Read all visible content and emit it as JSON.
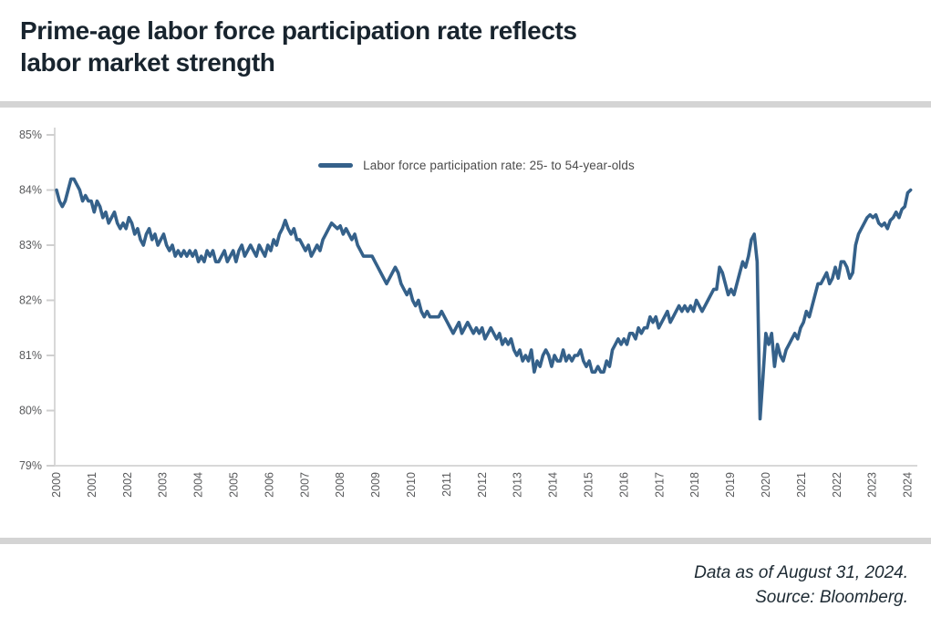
{
  "header": {
    "title_line1": "Prime-age labor force participation rate reflects",
    "title_line2": "labor market strength"
  },
  "legend": {
    "label": "Labor force participation rate: 25- to 54-year-olds"
  },
  "footer": {
    "line1": "Data as of August 31, 2024.",
    "line2": "Source: Bloomberg."
  },
  "colors": {
    "line": "#35618a",
    "axis": "#d8d8d8",
    "tick": "#cfcfcf",
    "tick_label": "#58595b",
    "divider": "#d4d4d4",
    "title_text": "#18242e",
    "footer_text": "#1d2a33",
    "legend_text": "#4b4b4b"
  },
  "chart_data": {
    "type": "line",
    "title": "Prime-age labor force participation rate reflects labor market strength",
    "series_name": "Labor force participation rate: 25- to 54-year-olds",
    "frequency": "monthly",
    "start": "2000-01",
    "end": "2024-08",
    "unit": "percent",
    "ylim": [
      79,
      85
    ],
    "grid": false,
    "legend_position": "top-center",
    "y_ticks": [
      "85%",
      "84%",
      "83%",
      "82%",
      "81%",
      "80%",
      "79%"
    ],
    "x_ticks": [
      "2000",
      "2001",
      "2002",
      "2003",
      "2004",
      "2005",
      "2006",
      "2007",
      "2008",
      "2009",
      "2010",
      "2011",
      "2012",
      "2013",
      "2014",
      "2015",
      "2016",
      "2017",
      "2018",
      "2019",
      "2020",
      "2021",
      "2022",
      "2023",
      "2024"
    ],
    "values": [
      84.0,
      83.8,
      83.7,
      83.8,
      84.0,
      84.2,
      84.2,
      84.1,
      84.0,
      83.8,
      83.9,
      83.8,
      83.8,
      83.6,
      83.8,
      83.7,
      83.5,
      83.6,
      83.4,
      83.5,
      83.6,
      83.4,
      83.3,
      83.4,
      83.3,
      83.5,
      83.4,
      83.2,
      83.3,
      83.1,
      83.0,
      83.2,
      83.3,
      83.1,
      83.2,
      83.0,
      83.1,
      83.2,
      83.0,
      82.9,
      83.0,
      82.8,
      82.9,
      82.8,
      82.9,
      82.8,
      82.9,
      82.8,
      82.9,
      82.7,
      82.8,
      82.7,
      82.9,
      82.8,
      82.9,
      82.7,
      82.7,
      82.8,
      82.9,
      82.7,
      82.8,
      82.9,
      82.7,
      82.9,
      83.0,
      82.8,
      82.9,
      83.0,
      82.9,
      82.8,
      83.0,
      82.9,
      82.8,
      83.0,
      82.9,
      83.1,
      83.0,
      83.2,
      83.3,
      83.45,
      83.3,
      83.2,
      83.3,
      83.1,
      83.1,
      83.0,
      82.9,
      83.0,
      82.8,
      82.9,
      83.0,
      82.9,
      83.1,
      83.2,
      83.3,
      83.4,
      83.35,
      83.3,
      83.35,
      83.2,
      83.3,
      83.2,
      83.1,
      83.2,
      83.0,
      82.9,
      82.8,
      82.8,
      82.8,
      82.8,
      82.7,
      82.6,
      82.5,
      82.4,
      82.3,
      82.4,
      82.5,
      82.6,
      82.5,
      82.3,
      82.2,
      82.1,
      82.2,
      82.0,
      81.9,
      82.0,
      81.8,
      81.7,
      81.8,
      81.7,
      81.7,
      81.7,
      81.7,
      81.8,
      81.7,
      81.6,
      81.5,
      81.4,
      81.5,
      81.6,
      81.4,
      81.5,
      81.6,
      81.5,
      81.4,
      81.5,
      81.4,
      81.5,
      81.3,
      81.4,
      81.5,
      81.4,
      81.3,
      81.4,
      81.2,
      81.3,
      81.2,
      81.3,
      81.1,
      81.0,
      81.1,
      80.9,
      81.0,
      80.9,
      81.1,
      80.7,
      80.9,
      80.8,
      81.0,
      81.1,
      81.0,
      80.8,
      81.0,
      80.9,
      80.9,
      81.1,
      80.9,
      81.0,
      80.9,
      81.0,
      81.0,
      81.1,
      80.9,
      80.8,
      80.9,
      80.7,
      80.7,
      80.8,
      80.7,
      80.7,
      80.9,
      80.8,
      81.1,
      81.2,
      81.3,
      81.2,
      81.3,
      81.2,
      81.4,
      81.4,
      81.3,
      81.5,
      81.4,
      81.5,
      81.5,
      81.7,
      81.6,
      81.7,
      81.5,
      81.6,
      81.7,
      81.8,
      81.6,
      81.7,
      81.8,
      81.9,
      81.8,
      81.9,
      81.8,
      81.9,
      81.8,
      82.0,
      81.9,
      81.8,
      81.9,
      82.0,
      82.1,
      82.2,
      82.2,
      82.6,
      82.5,
      82.3,
      82.1,
      82.2,
      82.1,
      82.3,
      82.5,
      82.7,
      82.6,
      82.8,
      83.1,
      83.2,
      82.7,
      79.85,
      80.6,
      81.4,
      81.2,
      81.4,
      80.8,
      81.2,
      81.0,
      80.9,
      81.1,
      81.2,
      81.3,
      81.4,
      81.3,
      81.5,
      81.6,
      81.8,
      81.7,
      81.9,
      82.1,
      82.3,
      82.3,
      82.4,
      82.5,
      82.3,
      82.4,
      82.6,
      82.4,
      82.7,
      82.7,
      82.6,
      82.4,
      82.5,
      83.0,
      83.2,
      83.3,
      83.4,
      83.5,
      83.55,
      83.5,
      83.55,
      83.4,
      83.35,
      83.4,
      83.3,
      83.45,
      83.5,
      83.6,
      83.5,
      83.65,
      83.7,
      83.95,
      84.0
    ]
  }
}
